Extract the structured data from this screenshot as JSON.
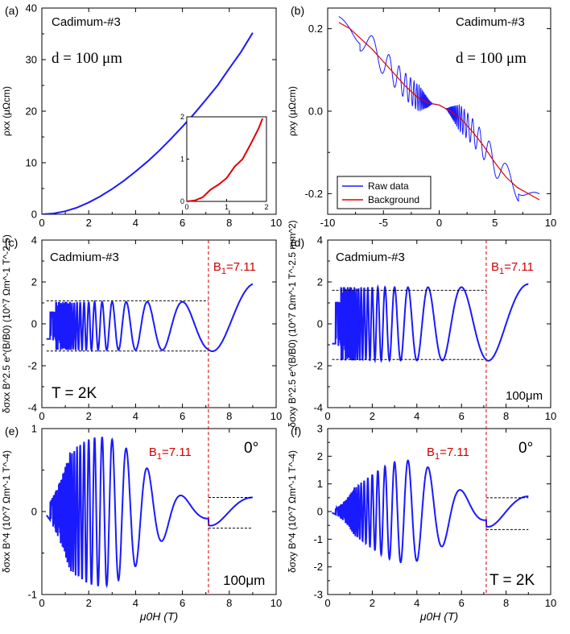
{
  "figure": {
    "x_axis_label": "μ0H (T)",
    "colors": {
      "blue": "#1a1aff",
      "red": "#e00000",
      "axis": "#000000",
      "ref": "#d00000",
      "dash": "#000000"
    }
  },
  "chart_data": [
    {
      "id": "a",
      "type": "line",
      "panel_label": "(a)",
      "sample_label": "Cadimum-#3",
      "thickness_label": "d = 100 μm",
      "ylabel": "ρxx (μΩcm)",
      "xlim": [
        0,
        10
      ],
      "ylim": [
        0,
        40
      ],
      "xticks": [
        0,
        2,
        4,
        6,
        8,
        10
      ],
      "yticks": [
        0,
        10,
        20,
        30,
        40
      ],
      "series": [
        {
          "name": "ρxx",
          "color": "#1a1aff",
          "x": [
            0,
            0.5,
            1,
            1.5,
            2,
            2.5,
            3,
            3.5,
            4,
            4.5,
            5,
            5.5,
            6,
            6.5,
            7,
            7.5,
            8,
            8.5,
            9
          ],
          "y": [
            0,
            0.15,
            0.6,
            1.3,
            2.3,
            3.5,
            4.9,
            6.5,
            8.3,
            10.2,
            12.3,
            14.6,
            17.0,
            19.5,
            22.2,
            25.0,
            28.3,
            31.5,
            35.2
          ]
        }
      ],
      "inset": {
        "xlim": [
          0,
          2
        ],
        "ylim": [
          0,
          2
        ],
        "xticks": [
          0,
          1,
          2
        ],
        "yticks": [
          0,
          1,
          2
        ],
        "series": [
          {
            "name": "low field",
            "color": "#e00000",
            "x": [
              0,
              0.2,
              0.4,
              0.6,
              0.8,
              1.0,
              1.2,
              1.4,
              1.6,
              1.8,
              1.9
            ],
            "y": [
              0,
              0.02,
              0.1,
              0.28,
              0.4,
              0.55,
              0.82,
              1.0,
              1.35,
              1.72,
              1.96
            ]
          }
        ]
      }
    },
    {
      "id": "b",
      "type": "line",
      "panel_label": "(b)",
      "sample_label": "Cadimum-#3",
      "thickness_label": "d = 100 μm",
      "ylabel": "ρxy (μΩcm)",
      "xlim": [
        -10,
        10
      ],
      "ylim": [
        -0.25,
        0.25
      ],
      "xticks": [
        -10,
        -5,
        0,
        5,
        10
      ],
      "yticks": [
        -0.2,
        0.0,
        0.2
      ],
      "ytick_labels": [
        "-0.2",
        "0.0",
        "0.2"
      ],
      "legend": [
        "Raw data",
        "Background"
      ],
      "legend_position": "bottom-left",
      "series": [
        {
          "name": "Raw data",
          "color": "#1a1aff",
          "kind": "oscillating_raw",
          "B1": 7.11,
          "x_range": [
            -9,
            9
          ]
        },
        {
          "name": "Background",
          "color": "#e00000",
          "x": [
            -9,
            -8,
            -7,
            -6,
            -5,
            -4,
            -3,
            -2,
            -1,
            0,
            1,
            2,
            3,
            4,
            5,
            6,
            7,
            8,
            9
          ],
          "y": [
            0.215,
            0.2,
            0.175,
            0.15,
            0.12,
            0.09,
            0.06,
            0.035,
            0.02,
            0.015,
            0.0,
            -0.02,
            -0.05,
            -0.085,
            -0.125,
            -0.16,
            -0.185,
            -0.2,
            -0.215
          ]
        }
      ]
    },
    {
      "id": "c",
      "type": "line",
      "panel_label": "(c)",
      "sample_label": "Cadmium-#3",
      "temperature_label": "T = 2K",
      "ref_label_main": "B",
      "ref_label_sub": "1",
      "ref_label_value": "=7.11",
      "ylabel": "δσxx B^2.5 e^(B/B0) (10^7 Ωm^-1 T^-2.5)",
      "xlim": [
        0,
        10
      ],
      "ylim": [
        -4,
        4
      ],
      "xticks": [
        0,
        2,
        4,
        6,
        8,
        10
      ],
      "yticks": [
        -4,
        -2,
        0,
        2,
        4
      ],
      "ref_line_x": 7.11,
      "envelope": {
        "upper": 1.1,
        "lower": -1.3,
        "x_range": [
          0.2,
          7.11
        ]
      },
      "series": [
        {
          "name": "osc",
          "color": "#1a1aff",
          "kind": "osc",
          "B1": 7.11,
          "x_range": [
            0.2,
            9
          ],
          "amp_before": 1.15,
          "amp_after": 2.0,
          "offset": -0.1
        }
      ]
    },
    {
      "id": "d",
      "type": "line",
      "panel_label": "(d)",
      "sample_label": "Cadmium-#3",
      "thickness_label": "100μm",
      "ref_label_main": "B",
      "ref_label_sub": "1",
      "ref_label_value": "=7.11",
      "ylabel": "δσxy B^2.5 e^(B/B0) (10^7 Ωm^-1 T^-2.5 mm^2)",
      "xlim": [
        0,
        10
      ],
      "ylim": [
        -4,
        4
      ],
      "xticks": [
        0,
        2,
        4,
        6,
        8,
        10
      ],
      "yticks": [
        -4,
        -2,
        0,
        2,
        4
      ],
      "ref_line_x": 7.11,
      "envelope": {
        "upper": 1.6,
        "lower": -1.7,
        "x_range": [
          0.2,
          7.11
        ]
      },
      "series": [
        {
          "name": "osc",
          "color": "#1a1aff",
          "kind": "osc",
          "B1": 7.11,
          "x_range": [
            0.2,
            9
          ],
          "amp_before": 1.75,
          "amp_after": 1.9,
          "offset": 0.0
        }
      ]
    },
    {
      "id": "e",
      "type": "line",
      "panel_label": "(e)",
      "angle_label": "0°",
      "thickness_label": "100μm",
      "ref_label_main": "B",
      "ref_label_sub": "1",
      "ref_label_value": "=7.11",
      "ylabel": "δσxx B^4 (10^7 Ωm^-1 T^-4)",
      "xlim": [
        0,
        10
      ],
      "ylim": [
        -1,
        1
      ],
      "xticks": [
        0,
        2,
        4,
        6,
        8,
        10
      ],
      "yticks": [
        -1,
        0,
        1
      ],
      "ref_line_x": 7.11,
      "envelope": {
        "upper": 0.17,
        "lower": -0.2,
        "x_range": [
          7.11,
          9
        ]
      },
      "series": [
        {
          "name": "osc",
          "color": "#1a1aff",
          "kind": "osc_bell",
          "B1": 7.11,
          "x_range": [
            0.2,
            9
          ],
          "peak": 0.85,
          "peak_x": 2.5,
          "after_amp": 0.17
        }
      ]
    },
    {
      "id": "f",
      "type": "line",
      "panel_label": "(f)",
      "angle_label": "0°",
      "temperature_label": "T = 2K",
      "ref_label_main": "B",
      "ref_label_sub": "1",
      "ref_label_value": "=7.11",
      "ylabel": "δσxy B^4 (10^7 Ωm^-1 T^-4)",
      "xlim": [
        0,
        10
      ],
      "ylim": [
        -3,
        3
      ],
      "xticks": [
        0,
        2,
        4,
        6,
        8,
        10
      ],
      "yticks": [
        -3,
        -2,
        -1,
        0,
        1,
        2,
        3
      ],
      "ref_line_x": 7.11,
      "envelope": {
        "upper": 0.5,
        "lower": -0.65,
        "x_range": [
          7.11,
          9
        ]
      },
      "series": [
        {
          "name": "osc",
          "color": "#1a1aff",
          "kind": "osc_bell",
          "B1": 7.11,
          "x_range": [
            0.2,
            9
          ],
          "peak": 1.8,
          "peak_x": 3.5,
          "after_amp": 0.55
        }
      ]
    }
  ]
}
